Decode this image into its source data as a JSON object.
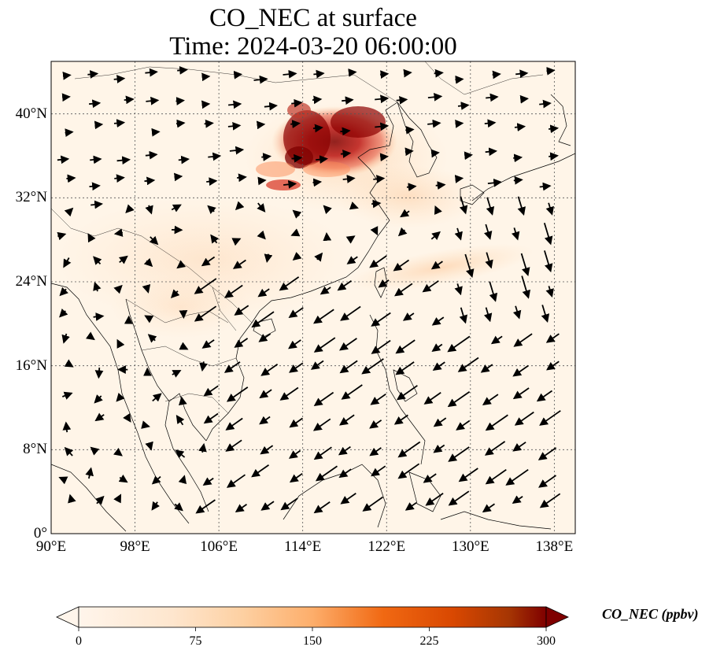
{
  "title": {
    "line1": "CO_NEC at surface",
    "line2": "Time: 2024-03-20 06:00:00"
  },
  "map": {
    "lon_range": [
      90,
      140
    ],
    "lat_range": [
      0,
      45
    ],
    "lat_ticks": [
      {
        "value": 0,
        "label": "0°"
      },
      {
        "value": 8,
        "label": "8°N"
      },
      {
        "value": 16,
        "label": "16°N"
      },
      {
        "value": 24,
        "label": "24°N"
      },
      {
        "value": 32,
        "label": "32°N"
      },
      {
        "value": 40,
        "label": "40°N"
      }
    ],
    "lon_ticks": [
      {
        "value": 90,
        "label": "90°E"
      },
      {
        "value": 98,
        "label": "98°E"
      },
      {
        "value": 106,
        "label": "106°E"
      },
      {
        "value": 114,
        "label": "114°E"
      },
      {
        "value": 122,
        "label": "122°E"
      },
      {
        "value": 130,
        "label": "130°E"
      },
      {
        "value": 138,
        "label": "138°E"
      }
    ],
    "gridlines": true,
    "background_color": "#fff5e8"
  },
  "colorbar": {
    "label": "CO_NEC (ppbv)",
    "min": 0,
    "max": 300,
    "extend": "both",
    "ticks": [
      "0",
      "75",
      "150",
      "225",
      "300"
    ],
    "colormap": [
      "#fff5eb",
      "#fdd0a2",
      "#fdae6b",
      "#f16913",
      "#d94801",
      "#a63603",
      "#7f0000"
    ]
  }
}
